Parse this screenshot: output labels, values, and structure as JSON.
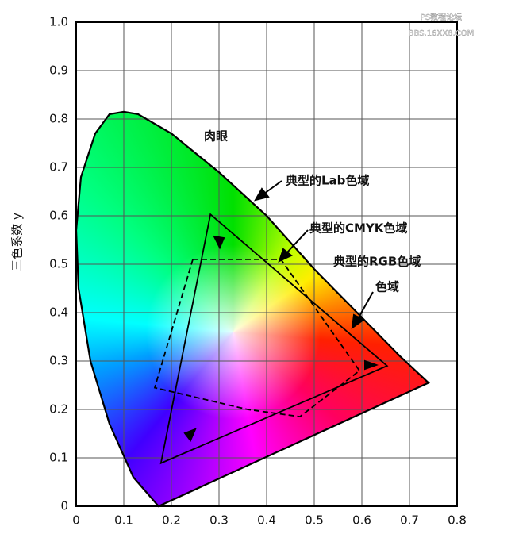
{
  "chart_data": {
    "type": "chromaticity",
    "ylabel": "三色系数 y",
    "xlim": [
      0,
      0.8
    ],
    "ylim": [
      0,
      1
    ],
    "xticks": [
      0,
      0.1,
      0.2,
      0.3,
      0.4,
      0.5,
      0.6,
      0.7,
      0.8
    ],
    "yticks": [
      0,
      0.1,
      0.2,
      0.3,
      0.4,
      0.5,
      0.6,
      0.7,
      0.8,
      0.9,
      {
        "value": 1,
        "label": "1.0"
      }
    ],
    "grid": true,
    "series": [
      {
        "color": "#000000",
        "dash": false,
        "x": [
          0.173,
          0.12,
          0.07,
          0.03,
          0.005,
          0.0,
          0.01,
          0.04,
          0.07,
          0.1,
          0.13,
          0.2,
          0.3,
          0.4,
          0.5,
          0.6,
          0.68,
          0.74
        ],
        "values": [
          0.0,
          0.06,
          0.17,
          0.3,
          0.45,
          0.57,
          0.68,
          0.77,
          0.81,
          0.815,
          0.81,
          0.77,
          0.69,
          0.6,
          0.49,
          0.39,
          0.31,
          0.255
        ]
      },
      {
        "color": "#000000",
        "dash": false,
        "x": [
          0.282,
          0.653,
          0.178
        ],
        "values": [
          0.603,
          0.29,
          0.089
        ]
      },
      {
        "color": "#000000",
        "dash": true,
        "x": [
          0.245,
          0.43,
          0.595,
          0.47,
          0.36,
          0.165
        ],
        "values": [
          0.51,
          0.51,
          0.28,
          0.185,
          0.2,
          0.245
        ]
      }
    ],
    "annotations": [
      "肉眼",
      "典型的Lab色域",
      "典型的CMYK色域",
      "典型的RGB色域",
      "色域"
    ],
    "watermark": [
      "PS教程论坛",
      "BBS.16XX8.COM"
    ]
  }
}
